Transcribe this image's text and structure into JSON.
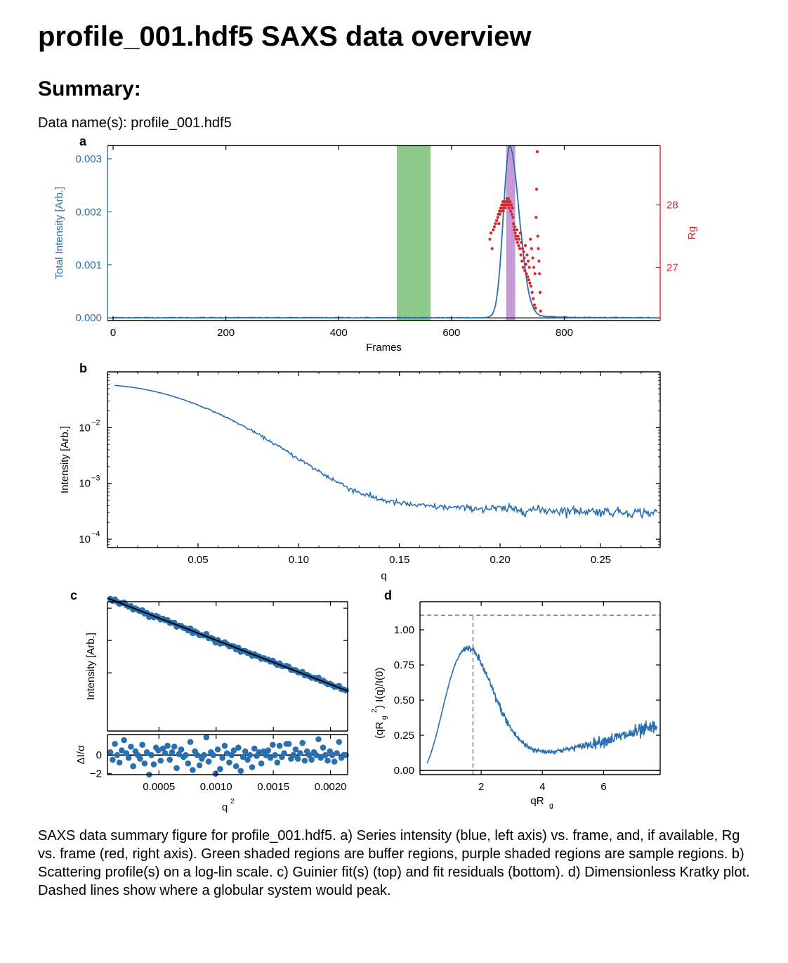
{
  "page": {
    "title": "profile_001.hdf5 SAXS data overview",
    "summary_heading": "Summary:",
    "data_name_line": "Data name(s): profile_001.hdf5",
    "caption": "SAXS data summary figure for profile_001.hdf5. a) Series intensity (blue, left axis) vs. frame, and, if available, Rg vs. frame (red, right axis). Green shaded regions are buffer regions, purple shaded regions are sample regions. b) Scattering profile(s) on a log-lin scale. c) Guinier fit(s) (top) and fit residuals (bottom). d) Dimensionless Kratky plot. Dashed lines show where a globular system would peak."
  },
  "colors": {
    "intensity": "#2a6fb0",
    "rg": "#d62728",
    "buffer": "#8cc98a",
    "sample": "#c59ad6",
    "fit": "#000000",
    "dashed": "#8c8c8c"
  },
  "chart_data": [
    {
      "id": "a",
      "panel_label": "a",
      "type": "line",
      "xlabel": "Frames",
      "ylabel": "Total Intensity [Arb.]",
      "y2label": "Rg",
      "xlim": [
        -10,
        970
      ],
      "ylim": [
        -5e-05,
        0.00325
      ],
      "y2lim": [
        26.15,
        28.95
      ],
      "xticks": [
        0,
        200,
        400,
        600,
        800
      ],
      "xtick_labels": [
        "0",
        "200",
        "400",
        "600",
        "800"
      ],
      "yticks": [
        0,
        0.001,
        0.002,
        0.003
      ],
      "ytick_labels": [
        "0.000",
        "0.001",
        "0.002",
        "0.003"
      ],
      "y2ticks": [
        27,
        28
      ],
      "y2tick_labels": [
        "27",
        "28"
      ],
      "buffer_regions": [
        [
          503,
          563
        ]
      ],
      "sample_regions": [
        [
          697,
          713
        ]
      ],
      "intensity_peak": {
        "center": 703,
        "amplitude": 0.00323,
        "width_left": 11,
        "width_right": 17,
        "baseline": 4e-06
      },
      "rg_points": {
        "x": [
          668,
          670,
          672,
          674,
          676,
          678,
          680,
          682,
          683,
          684,
          685,
          686,
          687,
          688,
          689,
          690,
          691,
          692,
          693,
          694,
          695,
          696,
          697,
          698,
          699,
          700,
          701,
          702,
          703,
          704,
          705,
          706,
          707,
          708,
          709,
          710,
          711,
          712,
          713,
          714,
          715,
          716,
          717,
          718,
          719,
          720,
          721,
          722,
          723,
          724,
          725,
          726,
          727,
          728,
          729,
          730,
          731,
          732,
          733,
          734,
          735,
          736,
          737,
          738,
          739,
          740,
          741,
          742,
          743,
          744,
          745,
          746,
          747,
          748,
          749,
          750,
          751,
          752,
          753,
          754,
          755,
          756,
          757,
          758
        ],
        "y": [
          27.45,
          27.55,
          27.3,
          27.6,
          27.65,
          27.7,
          27.75,
          27.8,
          27.85,
          27.7,
          27.9,
          27.85,
          27.95,
          27.9,
          28.0,
          27.95,
          28.05,
          27.9,
          28.0,
          28.05,
          27.95,
          28.0,
          28.05,
          28.1,
          28.0,
          28.05,
          28.1,
          27.95,
          28.0,
          28.05,
          27.9,
          28.0,
          27.85,
          27.95,
          27.8,
          27.7,
          27.6,
          27.65,
          27.55,
          27.5,
          27.45,
          27.6,
          27.4,
          27.5,
          27.35,
          27.45,
          27.3,
          27.55,
          27.2,
          27.4,
          27.1,
          27.3,
          27.0,
          27.25,
          27.15,
          26.95,
          27.35,
          27.05,
          26.9,
          27.2,
          26.85,
          27.1,
          26.8,
          27.0,
          26.75,
          27.45,
          26.7,
          27.3,
          26.6,
          27.15,
          26.5,
          27.0,
          26.4,
          26.9,
          26.35,
          27.8,
          28.25,
          28.85,
          27.5,
          27.3,
          27.1,
          26.9,
          26.6,
          26.3
        ]
      }
    },
    {
      "id": "b",
      "panel_label": "b",
      "type": "line",
      "xlabel": "q",
      "ylabel": "Intensity [Arb.]",
      "xscale": "linear",
      "yscale": "log",
      "xlim": [
        0.005,
        0.2795
      ],
      "ylim_log10": [
        -4.15,
        -1.0
      ],
      "xticks": [
        0.05,
        0.1,
        0.15,
        0.2,
        0.25
      ],
      "xtick_labels": [
        "0.05",
        "0.10",
        "0.15",
        "0.20",
        "0.25"
      ],
      "yticks_log10": [
        -4,
        -3,
        -2
      ],
      "ytick_labels": [
        "10",
        "10",
        "10"
      ],
      "ytick_exponents": [
        "−4",
        "−3",
        "−2"
      ],
      "profile": {
        "q_start": 0.0085,
        "q_end": 0.278,
        "points": 540,
        "I0": 0.058,
        "Rg": 27.9,
        "background": 0.00052,
        "noise_sigma_factor": 0.06
      }
    },
    {
      "id": "c",
      "panel_label": "c",
      "type": "scatter",
      "xlabel": "q",
      "xlabel_sup": "2",
      "ylabel": "Intensity [Arb.]",
      "residual_ylabel": "ΔI/σ",
      "xlim": [
        5e-05,
        0.00215
      ],
      "xticks": [
        0.0005,
        0.001,
        0.0015,
        0.002
      ],
      "xtick_labels": [
        "0.0005",
        "0.0010",
        "0.0015",
        "0.0020"
      ],
      "ylim_ln": [
        -3.64,
        -2.88
      ],
      "fit": {
        "ln_I0": -2.846,
        "slope": -260
      },
      "residual_ylim": [
        -2.1,
        2.2
      ],
      "residual_yticks": [
        -2,
        0
      ],
      "residual_ytick_labels": [
        "−2",
        "0"
      ],
      "points": {
        "q2": [
          7.5e-05,
          9.5e-05,
          0.000115,
          0.000135,
          0.000155,
          0.000175,
          0.000195,
          0.000215,
          0.000235,
          0.000255,
          0.000275,
          0.000295,
          0.000315,
          0.000335,
          0.000355,
          0.000375,
          0.000395,
          0.000415,
          0.000435,
          0.000455,
          0.000475,
          0.000495,
          0.000515,
          0.000535,
          0.000555,
          0.000575,
          0.000595,
          0.000615,
          0.000635,
          0.000655,
          0.000675,
          0.000695,
          0.000715,
          0.000735,
          0.000755,
          0.000775,
          0.000795,
          0.000815,
          0.000835,
          0.000855,
          0.000875,
          0.000895,
          0.000915,
          0.000935,
          0.000955,
          0.000975,
          0.000995,
          0.001015,
          0.001035,
          0.001055,
          0.001075,
          0.001095,
          0.001115,
          0.001135,
          0.001155,
          0.001175,
          0.001195,
          0.001215,
          0.001235,
          0.001255,
          0.001275,
          0.001295,
          0.001315,
          0.001335,
          0.001355,
          0.001375,
          0.001395,
          0.001415,
          0.001435,
          0.001455,
          0.001475,
          0.001495,
          0.001515,
          0.001535,
          0.001555,
          0.001575,
          0.001595,
          0.001615,
          0.001635,
          0.001655,
          0.001675,
          0.001695,
          0.001715,
          0.001735,
          0.001755,
          0.001775,
          0.001795,
          0.001815,
          0.001835,
          0.001855,
          0.001875,
          0.001895,
          0.001915,
          0.001935,
          0.001955,
          0.001975,
          0.001995,
          0.002015,
          0.002035,
          0.002055,
          0.002075,
          0.002095,
          0.002115,
          0.002135
        ],
        "residual": [
          0.3,
          -0.5,
          1.2,
          0.0,
          -0.8,
          0.5,
          1.6,
          0.2,
          -0.3,
          0.9,
          -1.2,
          0.4,
          0.0,
          -0.4,
          1.1,
          -0.9,
          0.3,
          -2.1,
          0.0,
          -1.0,
          0.8,
          0.5,
          -0.6,
          0.7,
          0.2,
          1.0,
          -0.5,
          0.3,
          0.9,
          -1.4,
          0.1,
          0.6,
          -0.2,
          0.0,
          -0.9,
          1.4,
          -1.6,
          0.4,
          0.0,
          -1.1,
          -0.4,
          0.0,
          1.9,
          -0.7,
          0.3,
          0.0,
          -2.0,
          0.6,
          -1.5,
          -0.3,
          1.0,
          0.2,
          -0.8,
          0.0,
          0.5,
          -1.2,
          0.8,
          -1.7,
          -0.2,
          0.4,
          -0.5,
          0.0,
          -1.3,
          0.7,
          -0.1,
          0.3,
          -0.9,
          0.4,
          0.0,
          0.5,
          -0.3,
          1.1,
          0.0,
          -0.8,
          1.0,
          -0.2,
          0.2,
          1.2,
          1.2,
          -0.4,
          0.0,
          0.6,
          -0.4,
          0.2,
          1.3,
          -0.6,
          0.4,
          0.0,
          -0.5,
          0.3,
          0.0,
          1.7,
          -0.3,
          0.8,
          0.0,
          -0.6,
          0.4,
          0.0,
          -0.7,
          0.2,
          1.4,
          -0.3,
          0.0,
          0.0
        ]
      }
    },
    {
      "id": "d",
      "panel_label": "d",
      "type": "line",
      "xlabel": "qR",
      "xlabel_sub": "g",
      "ylabel": "(qR",
      "ylabel_sub": "g",
      "ylabel_sup": "2",
      "ylabel_rest": ") I(q)/I(0)",
      "xlim": [
        0.0,
        7.85
      ],
      "ylim": [
        -0.03,
        1.2
      ],
      "xticks": [
        2,
        4,
        6
      ],
      "xtick_labels": [
        "2",
        "4",
        "6"
      ],
      "yticks": [
        0.0,
        0.25,
        0.5,
        0.75,
        1.0
      ],
      "ytick_labels": [
        "0.00",
        "0.25",
        "0.50",
        "0.75",
        "1.00"
      ],
      "globular_peak": {
        "x": 1.732,
        "y": 1.104
      },
      "curve": {
        "x_start": 0.23,
        "x_end": 7.75,
        "points": 540
      }
    }
  ]
}
